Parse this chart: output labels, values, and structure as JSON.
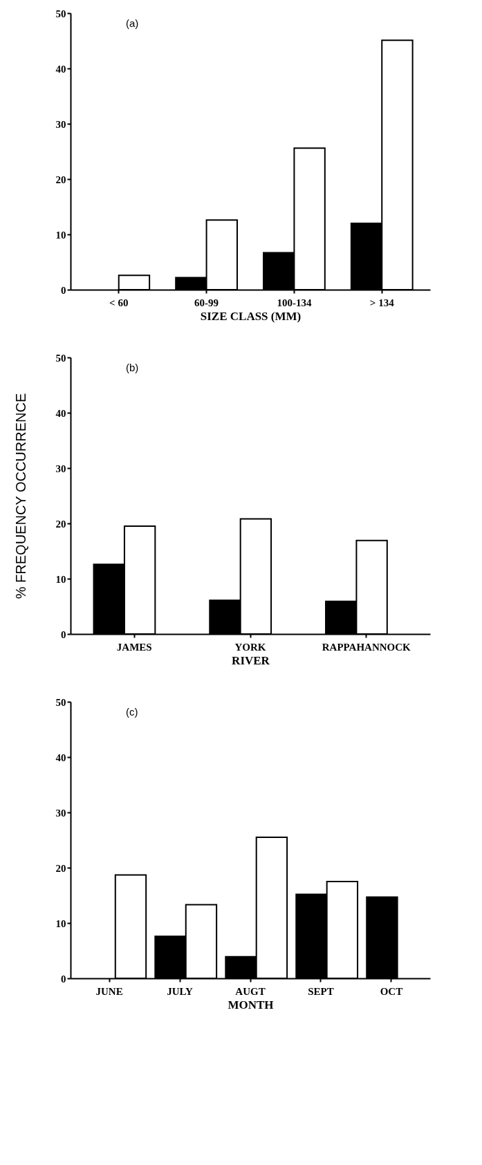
{
  "chart_data": [
    {
      "type": "bar",
      "categories": [
        "< 60",
        "60-99",
        "100-134",
        "> 134"
      ],
      "xlabel": "SIZE CLASS (MM)",
      "annotations": [
        "(a)"
      ],
      "ylim": [
        0,
        50
      ],
      "yticks": [
        0,
        10,
        20,
        30,
        40,
        50
      ],
      "grid": false,
      "legend": false,
      "series": [
        {
          "color": "#000000",
          "values": [
            null,
            2.2,
            6.7,
            12.0
          ]
        },
        {
          "color": "#ffffff",
          "values": [
            2.6,
            12.6,
            25.6,
            45.1
          ]
        }
      ]
    },
    {
      "type": "bar",
      "categories": [
        "JAMES",
        "YORK",
        "RAPPAHANNOCK"
      ],
      "xlabel": "RIVER",
      "ylabel": "% FREQUENCY OCCURRENCE",
      "annotations": [
        "(b)"
      ],
      "ylim": [
        0,
        50
      ],
      "yticks": [
        0,
        10,
        20,
        30,
        40,
        50
      ],
      "grid": false,
      "legend": false,
      "series": [
        {
          "color": "#000000",
          "values": [
            12.6,
            6.1,
            5.9
          ]
        },
        {
          "color": "#ffffff",
          "values": [
            19.5,
            20.8,
            16.9
          ]
        }
      ]
    },
    {
      "type": "bar",
      "categories": [
        "JUNE",
        "JULY",
        "AUGT",
        "SEPT",
        "OCT"
      ],
      "xlabel": "MONTH",
      "annotations": [
        "(c)"
      ],
      "ylim": [
        0,
        50
      ],
      "yticks": [
        0,
        10,
        20,
        30,
        40,
        50
      ],
      "grid": false,
      "legend": false,
      "series": [
        {
          "color": "#000000",
          "values": [
            null,
            7.6,
            3.9,
            15.2,
            14.7
          ]
        },
        {
          "color": "#ffffff",
          "values": [
            18.7,
            13.3,
            25.5,
            17.5,
            null
          ]
        }
      ]
    }
  ]
}
